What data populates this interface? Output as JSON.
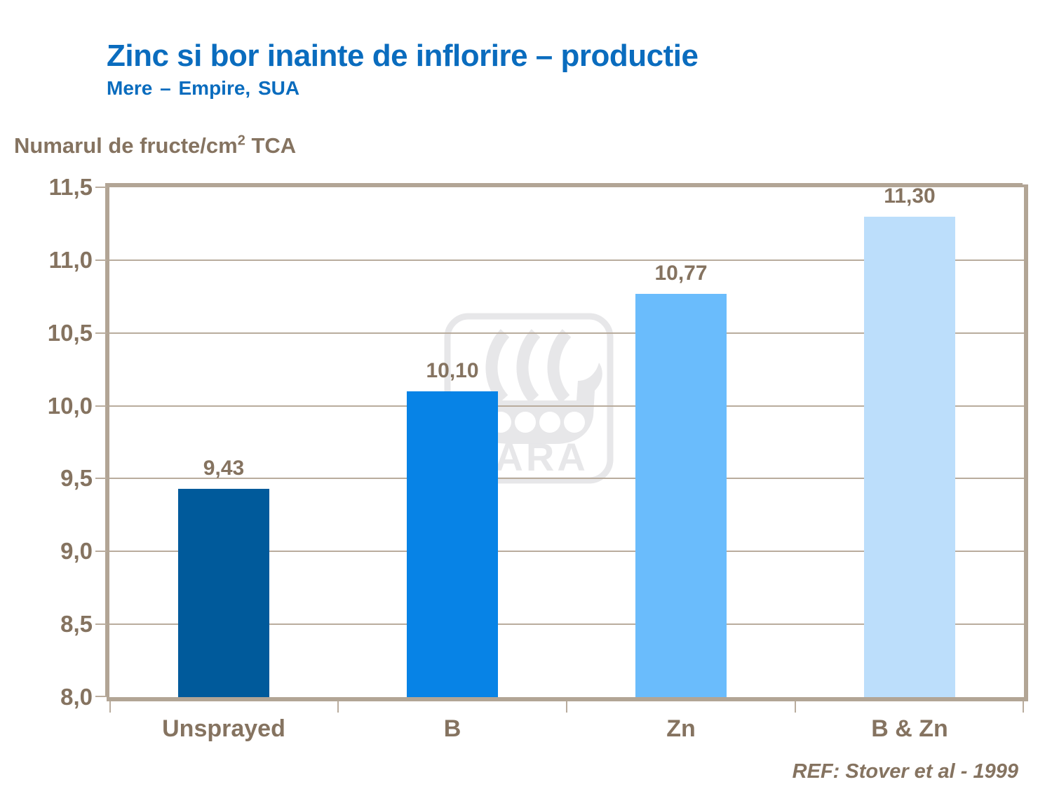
{
  "slide": {
    "title": "Zinc si bor inainte de inflorire – productie",
    "subtitle": "Mere – Empire, SUA",
    "footer_ref": "REF: Stover et al - 1999"
  },
  "axis_title": {
    "main": "Numarul de fructe/cm",
    "sup": "2",
    "suffix": " TCA"
  },
  "watermark": {
    "text": "YARA"
  },
  "colors": {
    "title_blue": "#0a6cbe",
    "text_brown": "#857360",
    "axis_line": "#b2a595",
    "gridline": "#b9ac9d",
    "watermark_gray": "#e7e7e9",
    "bars": [
      "#005a9b",
      "#0783e6",
      "#6abcfc",
      "#bcdefb"
    ]
  },
  "chart_data": {
    "type": "bar",
    "title": "Zinc si bor inainte de inflorire – productie",
    "subtitle": "Mere – Empire, SUA",
    "categories": [
      "Unsprayed",
      "B",
      "Zn",
      "B & Zn"
    ],
    "values": [
      9.43,
      10.1,
      10.77,
      11.3
    ],
    "value_labels": [
      "9,43",
      "10,10",
      "10,77",
      "11,30"
    ],
    "xlabel": "",
    "ylabel": "Numarul de fructe/cm2 TCA",
    "ylim": [
      8.0,
      11.5
    ],
    "ytick_step": 0.5,
    "ytick_labels": [
      "8,0",
      "8,5",
      "9,0",
      "9,5",
      "10,0",
      "10,5",
      "11,0",
      "11,5"
    ],
    "grid": true,
    "legend": false,
    "annotation": "REF: Stover et al - 1999"
  }
}
